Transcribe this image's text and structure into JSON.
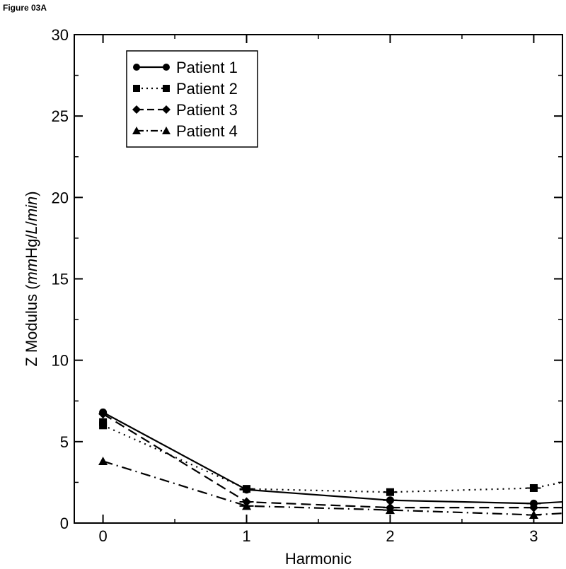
{
  "figure_label": "Figure 03A",
  "chart_data": {
    "type": "line",
    "title": "",
    "xlabel": "Harmonic",
    "ylabel_prefix": "Z Modulus (",
    "ylabel_parts": [
      {
        "text": "mm",
        "italic": true
      },
      {
        "text": "Hg/",
        "italic": false
      },
      {
        "text": "L",
        "italic": true
      },
      {
        "text": "/",
        "italic": false
      },
      {
        "text": "min",
        "italic": true
      }
    ],
    "ylabel_suffix": ")",
    "xlim": [
      -0.2,
      3.2
    ],
    "ylim": [
      0,
      30
    ],
    "xticks": [
      0,
      1,
      2,
      3
    ],
    "yticks": [
      0,
      5,
      10,
      15,
      20,
      25,
      30
    ],
    "legend_position": "top-left",
    "series": [
      {
        "name": "Patient 1",
        "marker": "circle",
        "dash": "solid",
        "x": [
          0,
          1,
          2,
          3,
          3.2
        ],
        "y": [
          6.8,
          2.05,
          1.4,
          1.2,
          1.3
        ]
      },
      {
        "name": "Patient 2",
        "marker": "square",
        "dash": "dot",
        "x": [
          0,
          1,
          2,
          3,
          3.2
        ],
        "y": [
          6.0,
          2.1,
          1.9,
          2.15,
          2.5
        ]
      },
      {
        "name": "Patient 3",
        "marker": "diamond",
        "dash": "dash",
        "x": [
          0,
          1,
          2,
          3,
          3.2
        ],
        "y": [
          6.7,
          1.3,
          0.95,
          0.95,
          0.95
        ]
      },
      {
        "name": "Patient 4",
        "marker": "triangle",
        "dash": "dashdot",
        "x": [
          0,
          1,
          2,
          3,
          3.2
        ],
        "y": [
          3.8,
          1.05,
          0.8,
          0.5,
          0.6
        ]
      }
    ],
    "extra_points": [
      {
        "series": "Patient 2",
        "x": 0,
        "y": 6.2
      }
    ]
  }
}
